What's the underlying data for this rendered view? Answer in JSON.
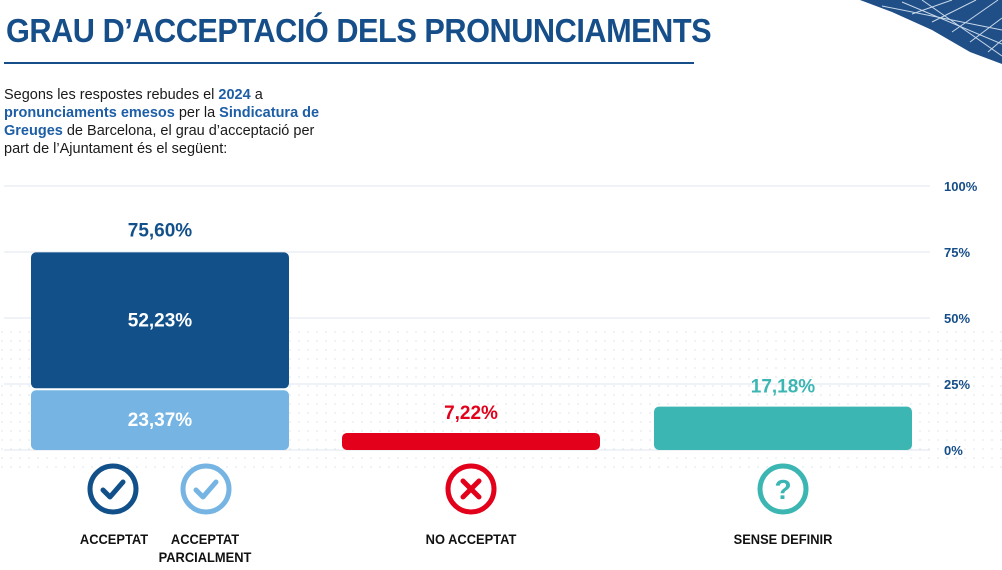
{
  "header": {
    "title": "GRAU D’ACCEPTACIÓ DELS PRONUNCIAMENTS"
  },
  "intro": {
    "p1": "Segons les respostes rebudes el ",
    "year": "2024",
    "p2": " a ",
    "hl1": "pronunciaments emesos",
    "p3": " per la ",
    "hl2": "Sindicatura de Greuges",
    "p4": " de Barcelona, el grau d’acceptació per part de l’Ajuntament és el següent:"
  },
  "colors": {
    "title": "#154e89",
    "accepted": "#12508a",
    "partial": "#76b5e3",
    "not_accepted": "#e2001a",
    "undefined": "#3bb6b3",
    "grid": "#dfe5ec",
    "axis_text": "#154e89"
  },
  "icons": [
    "check-circle-icon",
    "check-circle-light-icon",
    "x-circle-icon",
    "question-circle-icon"
  ],
  "chart_data": {
    "type": "bar",
    "stacked": true,
    "ylim": [
      0,
      100
    ],
    "yticks": [
      "0%",
      "25%",
      "50%",
      "75%",
      "100%"
    ],
    "grid": true,
    "categories": [
      "ACCEPTAT / ACCEPTAT PARCIALMENT",
      "NO ACCEPTAT",
      "SENSE DEFINIR"
    ],
    "series": [
      {
        "name": "ACCEPTAT",
        "values": [
          52.23,
          null,
          null
        ],
        "labels": [
          "52,23%",
          "",
          ""
        ]
      },
      {
        "name": "ACCEPTAT PARCIALMENT",
        "values": [
          23.37,
          null,
          null
        ],
        "labels": [
          "23,37%",
          "",
          ""
        ]
      },
      {
        "name": "NO ACCEPTAT",
        "values": [
          null,
          7.22,
          null
        ],
        "labels": [
          "",
          "7,22%",
          ""
        ]
      },
      {
        "name": "SENSE DEFINIR",
        "values": [
          null,
          null,
          17.18
        ],
        "labels": [
          "",
          "",
          "17,18%"
        ]
      }
    ],
    "totals": [
      "75,60%",
      "7,22%",
      "17,18%"
    ],
    "x_labels": {
      "accepted": "ACCEPTAT",
      "partial_1": "ACCEPTAT",
      "partial_2": "PARCIALMENT",
      "not_accepted": "NO ACCEPTAT",
      "undefined": "SENSE DEFINIR"
    }
  }
}
